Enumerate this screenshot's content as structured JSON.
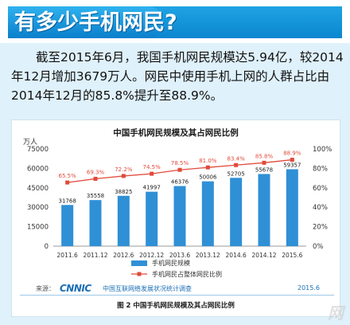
{
  "header": {
    "title": "有多少手机网民?"
  },
  "intro": "截至2015年6月，我国手机网民规模达5.94亿，较2014年12月增加3679万人。网民中使用手机上网的人群占比由2014年12月的85.8%提升至88.9%。",
  "chart_data": {
    "type": "bar",
    "title": "中国手机网民规模及其占网民比例",
    "unit_left": "万人",
    "categories": [
      "2011.6",
      "2011.12",
      "2012.6",
      "2012.12",
      "2013.6",
      "2013.12",
      "2014.6",
      "2014.12",
      "2015.6"
    ],
    "series": [
      {
        "name": "手机网民规模",
        "type": "bar",
        "values": [
          31768,
          35558,
          38825,
          41997,
          46376,
          50006,
          52705,
          55678,
          59357
        ],
        "labels": [
          "31768",
          "35558",
          "38825",
          "41997",
          "46376",
          "50006",
          "52705",
          "55678",
          "59357"
        ]
      },
      {
        "name": "手机网民占整体网民比例",
        "type": "line",
        "axis": "right",
        "values": [
          65.5,
          69.3,
          72.2,
          74.5,
          78.5,
          81.0,
          83.4,
          85.8,
          88.9
        ],
        "labels": [
          "65.5%",
          "69.3%",
          "72.2%",
          "74.5%",
          "78.5%",
          "81.0%",
          "83.4%",
          "85.8%",
          "88.9%"
        ]
      }
    ],
    "ylim": [
      0,
      75000
    ],
    "ylim_right": [
      0,
      100
    ],
    "left_ticks": [
      "0",
      "15000",
      "30000",
      "45000",
      "60000",
      "75000"
    ],
    "right_ticks": [
      "0%",
      "20%",
      "40%",
      "60%",
      "80%",
      "100%"
    ],
    "legend_position": "bottom",
    "grid": false,
    "colors": {
      "bar": "#2f90d6",
      "line": "#e04a3b"
    }
  },
  "source": {
    "label": "来源：",
    "logo": "CNNIC",
    "org": "中国互联网络发展状况统计调查",
    "date": "2015.6"
  },
  "caption": "图 2 中国手机网民规模及其占网民比例",
  "watermark": "网"
}
